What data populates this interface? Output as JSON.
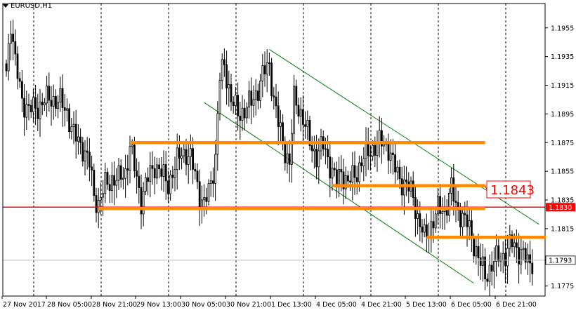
{
  "window": {
    "symbol": "EURUSD,H1"
  },
  "chart_data": {
    "type": "candlestick",
    "symbol": "EURUSD",
    "timeframe": "H1",
    "ylim": [
      1.1768,
      1.1972
    ],
    "price_ticks": [
      "1.1955",
      "1.1935",
      "1.1915",
      "1.1895",
      "1.1875",
      "1.1855",
      "1.1835",
      "1.1830",
      "1.1815",
      "1.1793",
      "1.1775"
    ],
    "time_ticks": [
      "27 Nov 2017",
      "28 Nov 05:00",
      "28 Nov 21:00",
      "29 Nov 13:00",
      "30 Nov 05:00",
      "30 Nov 21:00",
      "1 Dec 13:00",
      "4 Dec 05:00",
      "4 Dec 21:00",
      "5 Dec 13:00",
      "6 Dec 05:00",
      "6 Dec 21:00"
    ],
    "horizontal_line": {
      "price": 1.183,
      "label": "1.1830",
      "color": "#ff0000"
    },
    "current_price": {
      "price": 1.1793,
      "label": "1.1793"
    },
    "callout_label": "1.1843",
    "levels": [
      {
        "price": 1.1875,
        "from_bar": 55,
        "to_bar": 213
      },
      {
        "price": 1.1845,
        "from_bar": 145,
        "to_bar": 213
      },
      {
        "price": 1.1829,
        "from_bar": 41,
        "to_bar": 213
      },
      {
        "price": 1.1809,
        "from_bar": 187,
        "to_bar": 240
      }
    ],
    "channel": {
      "upper": {
        "from": [
          117,
          1.194
        ],
        "to": [
          237,
          1.1818
        ]
      },
      "lower": {
        "from": [
          88,
          1.1903
        ],
        "to": [
          208,
          1.1777
        ]
      }
    },
    "colors": {
      "bull": "#ffffff",
      "bear": "#000000",
      "wick": "#000000",
      "level": "#ff8c00",
      "channel": "#008000",
      "hline": "#ff0000",
      "grid": "#000000"
    },
    "anchors": [
      [
        0,
        1.1925
      ],
      [
        2,
        1.196
      ],
      [
        4,
        1.193
      ],
      [
        7,
        1.1905
      ],
      [
        10,
        1.1898
      ],
      [
        13,
        1.1899
      ],
      [
        17,
        1.1904
      ],
      [
        20,
        1.1906
      ],
      [
        24,
        1.1903
      ],
      [
        27,
        1.1897
      ],
      [
        30,
        1.188
      ],
      [
        34,
        1.1872
      ],
      [
        37,
        1.186
      ],
      [
        39,
        1.1838
      ],
      [
        41,
        1.1833
      ],
      [
        44,
        1.1845
      ],
      [
        47,
        1.185
      ],
      [
        50,
        1.1849
      ],
      [
        53,
        1.1855
      ],
      [
        55,
        1.1872
      ],
      [
        58,
        1.185
      ],
      [
        60,
        1.1835
      ],
      [
        63,
        1.185
      ],
      [
        66,
        1.186
      ],
      [
        69,
        1.1853
      ],
      [
        72,
        1.1847
      ],
      [
        75,
        1.1857
      ],
      [
        78,
        1.187
      ],
      [
        81,
        1.1865
      ],
      [
        84,
        1.1855
      ],
      [
        86,
        1.1838
      ],
      [
        88,
        1.183
      ],
      [
        91,
        1.1848
      ],
      [
        93,
        1.1865
      ],
      [
        95,
        1.192
      ],
      [
        97,
        1.193
      ],
      [
        100,
        1.1905
      ],
      [
        103,
        1.1895
      ],
      [
        106,
        1.1898
      ],
      [
        109,
        1.1903
      ],
      [
        112,
        1.1913
      ],
      [
        115,
        1.1925
      ],
      [
        117,
        1.193
      ],
      [
        119,
        1.1905
      ],
      [
        121,
        1.1888
      ],
      [
        124,
        1.187
      ],
      [
        126,
        1.186
      ],
      [
        128,
        1.1905
      ],
      [
        130,
        1.19
      ],
      [
        132,
        1.1892
      ],
      [
        135,
        1.1875
      ],
      [
        138,
        1.1866
      ],
      [
        141,
        1.1873
      ],
      [
        144,
        1.186
      ],
      [
        147,
        1.1846
      ],
      [
        149,
        1.1855
      ],
      [
        152,
        1.1847
      ],
      [
        155,
        1.1852
      ],
      [
        158,
        1.1862
      ],
      [
        161,
        1.1868
      ],
      [
        164,
        1.1873
      ],
      [
        167,
        1.1875
      ],
      [
        170,
        1.1872
      ],
      [
        172,
        1.186
      ],
      [
        175,
        1.185
      ],
      [
        178,
        1.1845
      ],
      [
        181,
        1.1838
      ],
      [
        183,
        1.1823
      ],
      [
        186,
        1.1808
      ],
      [
        189,
        1.1818
      ],
      [
        192,
        1.1828
      ],
      [
        195,
        1.1828
      ],
      [
        198,
        1.1843
      ],
      [
        200,
        1.183
      ],
      [
        202,
        1.1826
      ],
      [
        205,
        1.1818
      ],
      [
        208,
        1.1805
      ],
      [
        211,
        1.179
      ],
      [
        213,
        1.1782
      ],
      [
        216,
        1.179
      ],
      [
        219,
        1.1795
      ],
      [
        222,
        1.1797
      ],
      [
        225,
        1.1805
      ],
      [
        228,
        1.18
      ],
      [
        230,
        1.1796
      ],
      [
        232,
        1.1791
      ],
      [
        234,
        1.1793
      ]
    ]
  }
}
